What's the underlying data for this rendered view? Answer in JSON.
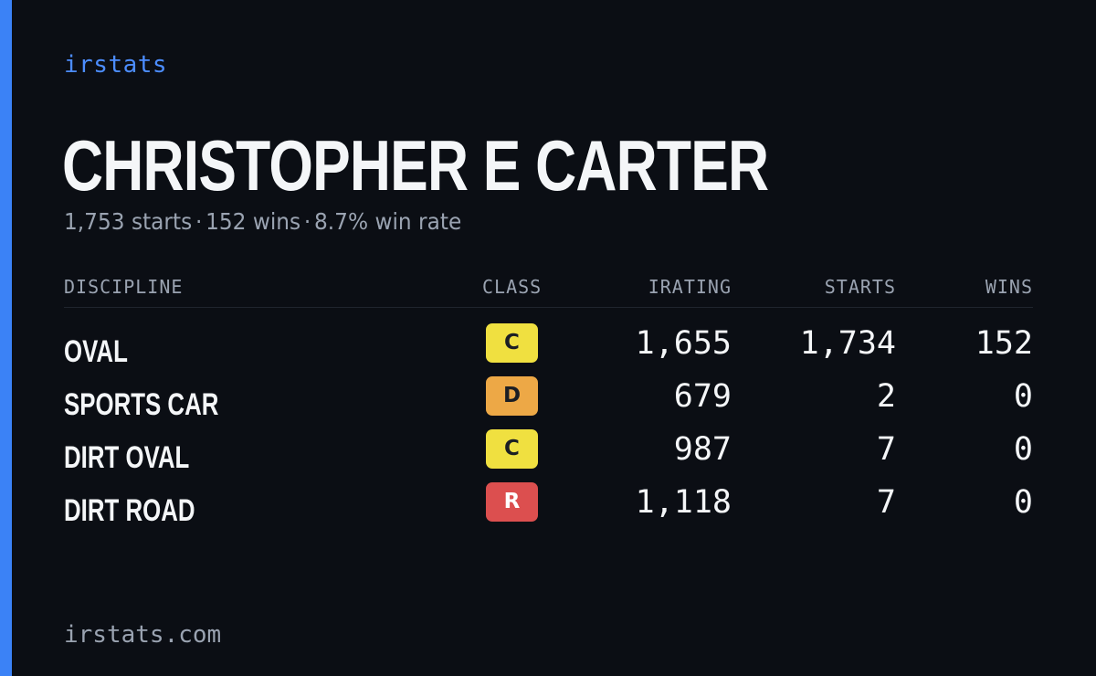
{
  "brand": "irstats",
  "player": {
    "name": "CHRISTOPHER E CARTER",
    "starts_text": "1,753 starts",
    "wins_text": "152 wins",
    "winrate_text": "8.7% win rate",
    "separator": "·"
  },
  "table": {
    "headers": {
      "discipline": "DISCIPLINE",
      "class": "CLASS",
      "irating": "IRATING",
      "starts": "STARTS",
      "wins": "WINS"
    },
    "rows": [
      {
        "discipline": "OVAL",
        "class": "C",
        "class_color": "#f0e040",
        "irating": "1,655",
        "starts": "1,734",
        "wins": "152"
      },
      {
        "discipline": "SPORTS CAR",
        "class": "D",
        "class_color": "#eda846",
        "irating": "679",
        "starts": "2",
        "wins": "0"
      },
      {
        "discipline": "DIRT OVAL",
        "class": "C",
        "class_color": "#f0e040",
        "irating": "987",
        "starts": "7",
        "wins": "0"
      },
      {
        "discipline": "DIRT ROAD",
        "class": "R",
        "class_color": "#dc4f4f",
        "irating": "1,118",
        "starts": "7",
        "wins": "0"
      }
    ]
  },
  "footer": {
    "url": "irstats.com"
  },
  "colors": {
    "background": "#0b0e14",
    "accent": "#3b82f6",
    "brand_text": "#4c8dff",
    "muted_text": "#9aa3b1",
    "primary_text": "#f4f6f8"
  }
}
